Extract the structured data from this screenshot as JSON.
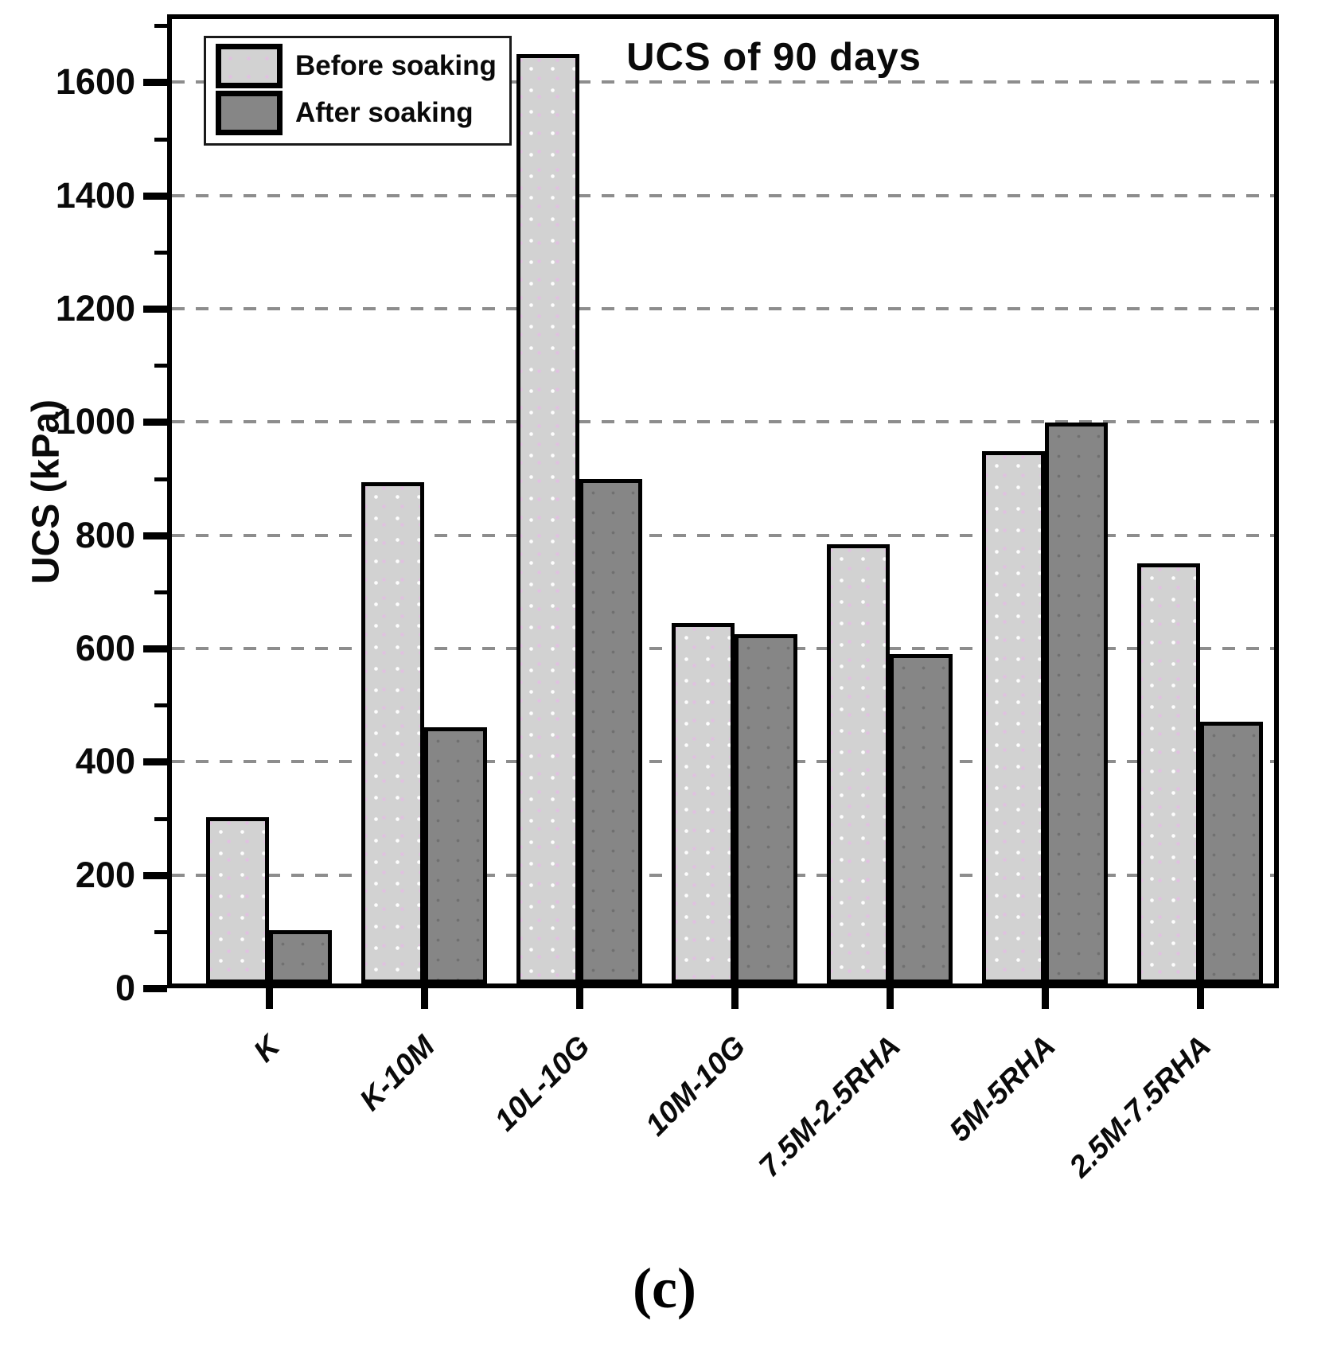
{
  "title": "UCS of 90 days",
  "caption": "(c)",
  "y_axis_label": "UCS (kPa)",
  "legend": [
    {
      "label": "Before soaking",
      "color": "#d2d2d2"
    },
    {
      "label": "After soaking",
      "color": "#868686"
    }
  ],
  "chart_data": {
    "type": "bar",
    "title": "UCS of 90 days",
    "xlabel": "",
    "ylabel": "UCS (kPa)",
    "categories": [
      "K",
      "K-10M",
      "10L-10G",
      "10M-10G",
      "7.5M-2.5RHA",
      "5M-5RHA",
      "2.5M-7.5RHA"
    ],
    "series": [
      {
        "name": "Before soaking",
        "color": "#d2d2d2",
        "values": [
          295,
          890,
          1650,
          640,
          780,
          945,
          745
        ]
      },
      {
        "name": "After soaking",
        "color": "#868686",
        "values": [
          95,
          455,
          895,
          620,
          585,
          995,
          465
        ]
      }
    ],
    "ylim": [
      0,
      1720
    ],
    "yticks": [
      0,
      200,
      400,
      600,
      800,
      1000,
      1200,
      1400,
      1600
    ],
    "minor_tick_step": 100,
    "grid": "horizontal dashed at major yticks",
    "gridline_color": "#8d8d8d",
    "legend_position": "top-left"
  }
}
